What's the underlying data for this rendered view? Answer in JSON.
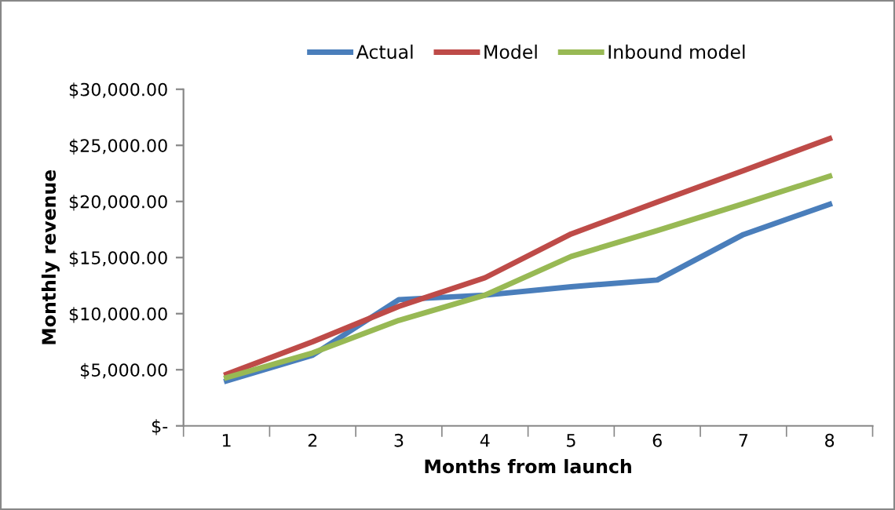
{
  "chart_data": {
    "type": "line",
    "xlabel": "Months from launch",
    "ylabel": "Monthly revenue",
    "categories": [
      "1",
      "2",
      "3",
      "4",
      "5",
      "6",
      "7",
      "8"
    ],
    "series": [
      {
        "name": "Actual",
        "color": "#4a7ebb",
        "values": [
          4000,
          6300,
          11250,
          11650,
          12400,
          13000,
          17050,
          19750
        ]
      },
      {
        "name": "Model",
        "color": "#be4b48",
        "values": [
          4600,
          7500,
          10650,
          13200,
          17100,
          19950,
          22750,
          25600
        ]
      },
      {
        "name": "Inbound model",
        "color": "#98b954",
        "values": [
          4300,
          6500,
          9400,
          11650,
          15100,
          17400,
          19800,
          22250
        ]
      }
    ],
    "ylim": [
      0,
      30000
    ],
    "yticks": [
      {
        "value": 0,
        "label": "$-"
      },
      {
        "value": 5000,
        "label": "$5,000.00"
      },
      {
        "value": 10000,
        "label": "$10,000.00"
      },
      {
        "value": 15000,
        "label": "$15,000.00"
      },
      {
        "value": 20000,
        "label": "$20,000.00"
      },
      {
        "value": 25000,
        "label": "$25,000.00"
      },
      {
        "value": 30000,
        "label": "$30,000.00"
      }
    ],
    "grid": false,
    "legend": "top",
    "marker": "none",
    "line_style": "solid"
  }
}
